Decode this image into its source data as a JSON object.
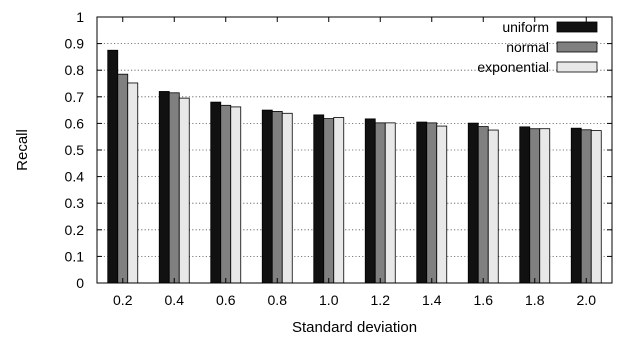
{
  "chart_data": {
    "type": "bar",
    "title": "",
    "xlabel": "Standard deviation",
    "ylabel": "Recall",
    "ylim": [
      0,
      1
    ],
    "yticks": [
      "0",
      "0.1",
      "0.2",
      "0.3",
      "0.4",
      "0.5",
      "0.6",
      "0.7",
      "0.8",
      "0.9",
      "1"
    ],
    "categories": [
      "0.2",
      "0.4",
      "0.6",
      "0.8",
      "1.0",
      "1.2",
      "1.4",
      "1.6",
      "1.8",
      "2.0"
    ],
    "grid": "horizontal dotted",
    "legend_position": "top-right",
    "series": [
      {
        "name": "uniform",
        "color": "#111111",
        "values": [
          0.875,
          0.72,
          0.68,
          0.65,
          0.632,
          0.617,
          0.605,
          0.601,
          0.587,
          0.582
        ]
      },
      {
        "name": "normal",
        "color": "#808080",
        "values": [
          0.785,
          0.715,
          0.668,
          0.645,
          0.618,
          0.602,
          0.602,
          0.588,
          0.58,
          0.576
        ]
      },
      {
        "name": "exponential",
        "color": "#e8e8e8",
        "values": [
          0.752,
          0.695,
          0.662,
          0.638,
          0.622,
          0.602,
          0.59,
          0.575,
          0.58,
          0.573
        ]
      }
    ]
  }
}
